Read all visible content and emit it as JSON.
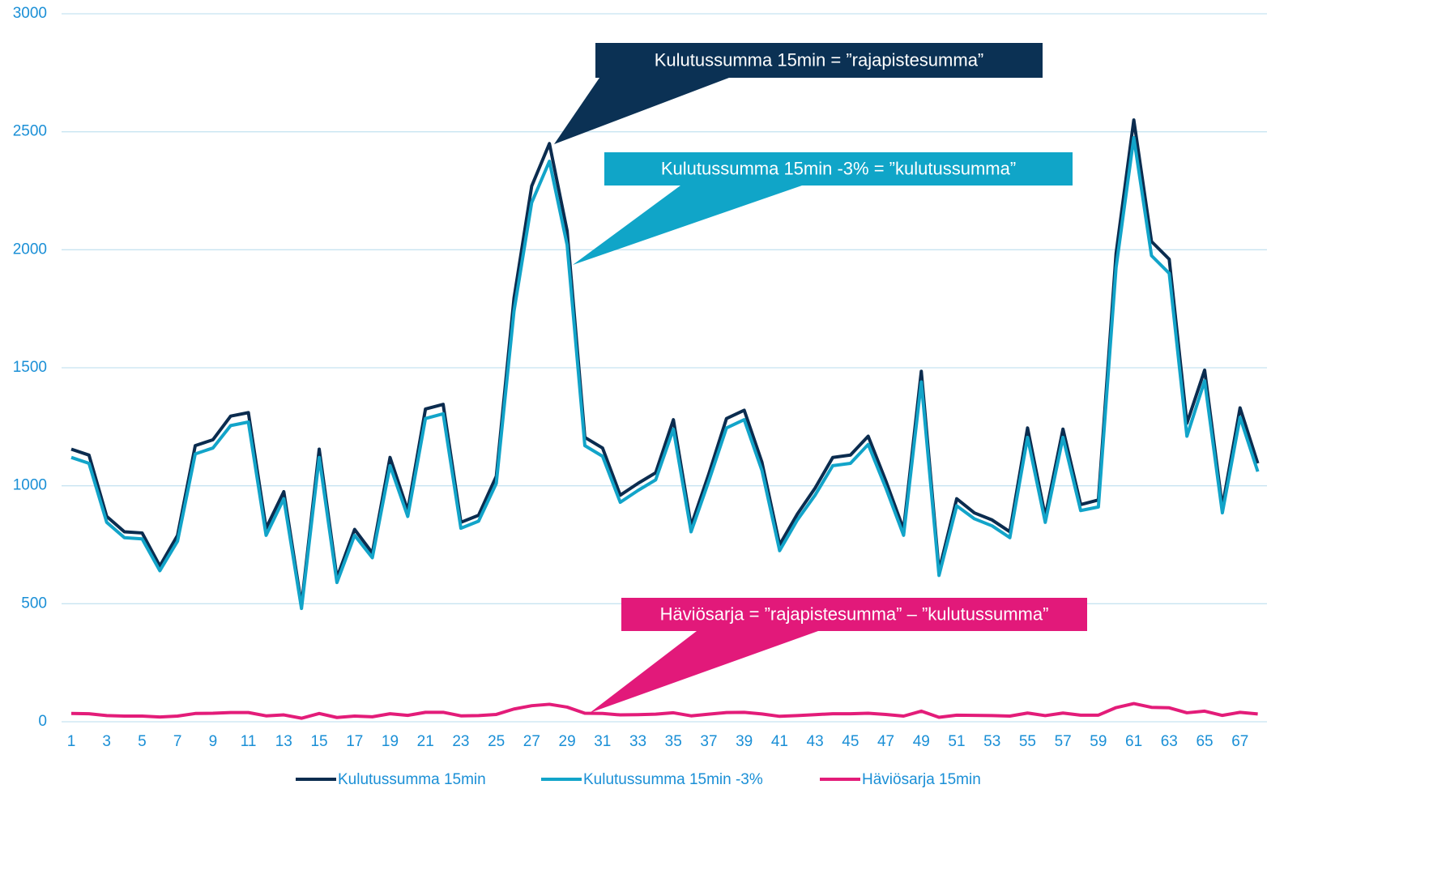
{
  "chart_data": {
    "type": "line",
    "categories": [
      1,
      null,
      3,
      null,
      5,
      null,
      7,
      null,
      9,
      null,
      11,
      null,
      13,
      null,
      15,
      null,
      17,
      null,
      19,
      null,
      21,
      null,
      23,
      null,
      25,
      null,
      27,
      null,
      29,
      null,
      31,
      null,
      33,
      null,
      35,
      null,
      37,
      null,
      39,
      null,
      41,
      null,
      43,
      null,
      45,
      null,
      47,
      null,
      49,
      null,
      51,
      null,
      53,
      null,
      55,
      null,
      57,
      null,
      59,
      null,
      61,
      null,
      63,
      null,
      65,
      null,
      67,
      null
    ],
    "series": [
      {
        "name": "Kulutussumma 15min",
        "color": "#0b2c4f",
        "values": [
          1155,
          1130,
          870,
          805,
          800,
          660,
          790,
          1170,
          1195,
          1295,
          1310,
          820,
          975,
          495,
          1155,
          610,
          815,
          715,
          1120,
          895,
          1325,
          1345,
          845,
          875,
          1040,
          1795,
          2270,
          2450,
          2080,
          1205,
          1160,
          960,
          1010,
          1055,
          1280,
          830,
          1050,
          1285,
          1320,
          1100,
          750,
          880,
          990,
          1120,
          1130,
          1210,
          1020,
          815,
          1485,
          640,
          945,
          885,
          855,
          805,
          1245,
          870,
          1240,
          920,
          940,
          1985,
          2550,
          2035,
          1960,
          1265,
          1490,
          910,
          1330,
          1095
        ]
      },
      {
        "name": "Kulutussumma 15min -3%",
        "color": "#12a4c9",
        "values": [
          1120,
          1095,
          845,
          780,
          775,
          640,
          765,
          1135,
          1160,
          1255,
          1270,
          790,
          945,
          480,
          1120,
          590,
          790,
          695,
          1085,
          870,
          1285,
          1305,
          820,
          850,
          1010,
          1740,
          2200,
          2375,
          2020,
          1170,
          1125,
          930,
          980,
          1025,
          1240,
          805,
          1020,
          1245,
          1280,
          1065,
          725,
          855,
          960,
          1085,
          1095,
          1175,
          990,
          790,
          1440,
          620,
          915,
          860,
          830,
          780,
          1205,
          845,
          1205,
          895,
          910,
          1925,
          2475,
          1975,
          1900,
          1210,
          1445,
          885,
          1290,
          1060
        ]
      },
      {
        "name": "Häviösarja 15min",
        "color": "#e31c79",
        "values": [
          35,
          34,
          26,
          24,
          24,
          20,
          24,
          35,
          36,
          39,
          39,
          25,
          29,
          15,
          35,
          18,
          24,
          21,
          34,
          27,
          40,
          40,
          25,
          26,
          31,
          54,
          68,
          74,
          62,
          36,
          35,
          29,
          30,
          32,
          38,
          25,
          32,
          39,
          40,
          33,
          23,
          26,
          30,
          34,
          34,
          36,
          31,
          24,
          45,
          19,
          28,
          27,
          26,
          24,
          37,
          26,
          37,
          28,
          28,
          60,
          77,
          61,
          59,
          38,
          45,
          27,
          40,
          33
        ]
      }
    ],
    "ylim": [
      0,
      3000
    ],
    "yticks": [
      0,
      500,
      1000,
      1500,
      2000,
      2500,
      3000
    ],
    "grid": true,
    "legend": "bottom",
    "annotations": [
      {
        "text": "Kulutussumma 15min = ”rajapistesumma”",
        "color": "#0b3154"
      },
      {
        "text": "Kulutussumma 15min -3% = ”kulutussumma”",
        "color": "#10a5c8"
      },
      {
        "text": "Häviösarja = ”rajapistesumma” – ”kulutussumma”",
        "color": "#e2197a"
      }
    ]
  }
}
